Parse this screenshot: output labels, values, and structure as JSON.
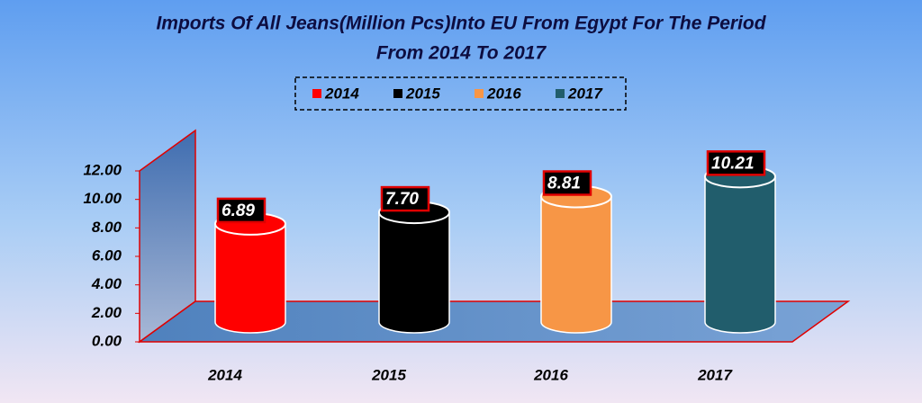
{
  "chart_data": {
    "type": "bar",
    "title": [
      "Imports Of All Jeans(Million Pcs)Into EU From Egypt For The Period",
      "From 2014 To 2017"
    ],
    "categories": [
      "2014",
      "2015",
      "2016",
      "2017"
    ],
    "values": [
      6.89,
      7.7,
      8.81,
      10.21
    ],
    "value_labels": [
      "6.89",
      "7.70",
      "8.81",
      "10.21"
    ],
    "colors": [
      "#ff0000",
      "#000000",
      "#f79646",
      "#215d6c"
    ],
    "ylim": [
      0,
      12
    ],
    "yticks": [
      {
        "value": 0,
        "label": "0.00"
      },
      {
        "value": 2,
        "label": "2.00"
      },
      {
        "value": 4,
        "label": "4.00"
      },
      {
        "value": 6,
        "label": "6.00"
      },
      {
        "value": 8,
        "label": "8.00"
      },
      {
        "value": 10,
        "label": "10.00"
      },
      {
        "value": 12,
        "label": "12.00"
      }
    ],
    "legend": "top"
  }
}
